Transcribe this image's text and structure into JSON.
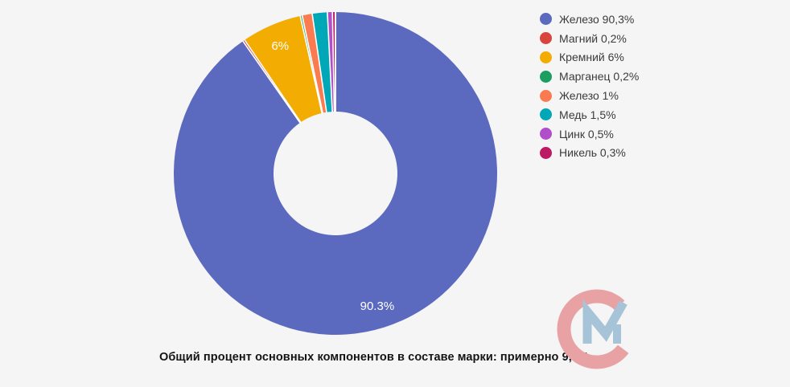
{
  "background_color": "#f5f5f5",
  "chart_data": {
    "type": "pie",
    "subtype": "donut",
    "start_angle_deg": 0,
    "direction": "clockwise",
    "legend_position": "right",
    "slice_separator_color": "#ffffff",
    "slices": [
      {
        "name": "Железо",
        "value": 90.3,
        "value_display": "90,3%",
        "color": "#5b6abf",
        "slice_label": "90.3%"
      },
      {
        "name": "Магний",
        "value": 0.2,
        "value_display": "0,2%",
        "color": "#d7453c",
        "slice_label": ""
      },
      {
        "name": "Кремний",
        "value": 6,
        "value_display": "6%",
        "color": "#f3ac01",
        "slice_label": "6%"
      },
      {
        "name": "Марганец",
        "value": 0.2,
        "value_display": "0,2%",
        "color": "#1a9e61",
        "slice_label": ""
      },
      {
        "name": "Железо",
        "value": 1,
        "value_display": "1%",
        "color": "#fb7b50",
        "slice_label": ""
      },
      {
        "name": "Медь",
        "value": 1.5,
        "value_display": "1,5%",
        "color": "#00a8b7",
        "slice_label": ""
      },
      {
        "name": "Цинк",
        "value": 0.5,
        "value_display": "0,5%",
        "color": "#b04fc9",
        "slice_label": ""
      },
      {
        "name": "Никель",
        "value": 0.3,
        "value_display": "0,3%",
        "color": "#bd1a64",
        "slice_label": ""
      }
    ]
  },
  "caption": "Общий процент основных компонентов в составе марки: примерно 9,7%",
  "logo": {
    "c_ring_color": "#e9a2a4",
    "m_check_color": "#a6c3d7"
  }
}
